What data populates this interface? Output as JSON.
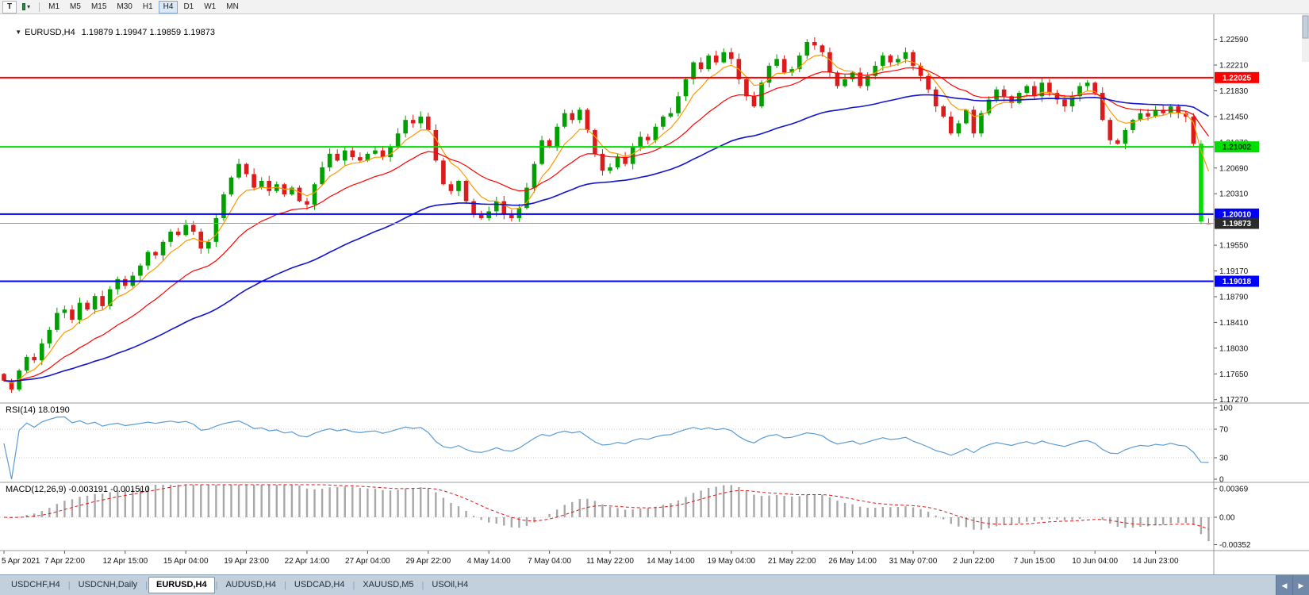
{
  "toolbar": {
    "tool_button": "T",
    "dropdown_icon": "▾",
    "timeframes": [
      "M1",
      "M5",
      "M15",
      "M30",
      "H1",
      "H4",
      "D1",
      "W1",
      "MN"
    ],
    "active_timeframe": "H4"
  },
  "chart_header": {
    "collapse_icon": "▼",
    "symbol": "EURUSD,H4",
    "ohlc": "1.19879 1.19947 1.19859 1.19873"
  },
  "rsi_panel": {
    "label": "RSI(14) 18.0190",
    "period": 14,
    "levels": [
      100,
      70,
      30,
      0
    ],
    "line_color": "#5b9bd5"
  },
  "macd_panel": {
    "label": "MACD(12,26,9) -0.003191 -0.001510",
    "fast": 12,
    "slow": 26,
    "signal": 9,
    "axis_labels": [
      "0.00369",
      "0.00",
      "-0.00352"
    ],
    "histogram_color": "#a8a8a8",
    "signal_color": "#e01616"
  },
  "tabs": {
    "items": [
      "USDCHF,H4",
      "USDCNH,Daily",
      "EURUSD,H4",
      "AUDUSD,H4",
      "USDCAD,H4",
      "XAUUSD,M5",
      "USOil,H4"
    ],
    "active": "EURUSD,H4",
    "scroll_left_icon": "◀",
    "scroll_right_icon": "▶"
  },
  "chart_data": {
    "type": "candlestick",
    "symbol": "EURUSD",
    "timeframe": "H4",
    "price_range": {
      "top": 1.2296,
      "bottom": 1.1722
    },
    "first_open": 1.1765,
    "closes": [
      1.1755,
      1.1742,
      1.177,
      1.179,
      1.1785,
      1.181,
      1.183,
      1.1855,
      1.186,
      1.1845,
      1.187,
      1.186,
      1.188,
      1.1865,
      1.189,
      1.1905,
      1.1895,
      1.191,
      1.1925,
      1.1945,
      1.194,
      1.196,
      1.1975,
      1.197,
      1.1985,
      1.1975,
      1.195,
      1.196,
      1.1995,
      1.203,
      1.2055,
      1.2075,
      1.206,
      1.204,
      1.205,
      1.2035,
      1.2045,
      1.203,
      1.204,
      1.202,
      1.2015,
      1.2045,
      1.207,
      1.209,
      1.208,
      1.2095,
      1.2085,
      1.208,
      1.209,
      1.2095,
      1.2085,
      1.21,
      1.212,
      1.214,
      1.2135,
      1.2145,
      1.2125,
      1.208,
      1.2045,
      1.2035,
      1.205,
      1.202,
      1.2,
      1.1995,
      1.2005,
      1.202,
      1.2,
      1.1995,
      1.201,
      1.204,
      1.2075,
      1.211,
      1.21,
      1.213,
      1.215,
      1.214,
      1.2155,
      1.2125,
      1.209,
      1.2065,
      1.207,
      1.2085,
      1.2075,
      1.21,
      1.2115,
      1.211,
      1.213,
      1.2145,
      1.215,
      1.2175,
      1.22,
      1.2225,
      1.2215,
      1.2235,
      1.2225,
      1.224,
      1.223,
      1.22,
      1.2175,
      1.216,
      1.2195,
      1.222,
      1.223,
      1.221,
      1.2215,
      1.2235,
      1.2255,
      1.225,
      1.224,
      1.221,
      1.219,
      1.22,
      1.221,
      1.219,
      1.2205,
      1.222,
      1.2235,
      1.2225,
      1.223,
      1.224,
      1.222,
      1.2205,
      1.2185,
      1.216,
      1.2145,
      1.212,
      1.2135,
      1.2155,
      1.212,
      1.215,
      1.217,
      1.2185,
      1.2175,
      1.2165,
      1.218,
      1.219,
      1.2175,
      1.2195,
      1.218,
      1.217,
      1.216,
      1.2175,
      1.219,
      1.2195,
      1.218,
      1.214,
      1.211,
      1.2105,
      1.2125,
      1.214,
      1.215,
      1.2145,
      1.2155,
      1.215,
      1.216,
      1.215,
      1.2145,
      1.2105,
      1.199,
      1.19873
    ],
    "candle_overrides": {
      "157": [
        1.2145,
        1.215,
        1.21,
        1.2105
      ],
      "158": [
        1.2105,
        1.211,
        1.1986,
        1.199,
        "bright"
      ],
      "159": [
        1.19879,
        1.19947,
        1.19859,
        1.19873
      ]
    },
    "up_color": "#00a000",
    "down_color": "#dc1c1c",
    "bright_up_color": "#00e000",
    "moving_averages": [
      {
        "name": "fast-ma",
        "period": 6,
        "color": "#ff9900",
        "width": 1.2
      },
      {
        "name": "medium-ma",
        "period": 18,
        "color": "#ff0000",
        "width": 1.2
      },
      {
        "name": "slow-ma",
        "period": 50,
        "color": "#1414cc",
        "width": 1.6
      }
    ],
    "hlines": [
      {
        "price": 1.22025,
        "label": "1.22025",
        "color": "#ff0000",
        "label_text": "#ffffff"
      },
      {
        "price": 1.21002,
        "label": "1.21002",
        "color": "#00dd00",
        "label_text": "#003300"
      },
      {
        "price": 1.2001,
        "label": "1.20010",
        "color": "#0000ff",
        "label_text": "#ffffff"
      },
      {
        "price": 1.19018,
        "label": "1.19018",
        "color": "#0000ff",
        "label_text": "#ffffff"
      }
    ],
    "current_price": {
      "value": 1.19873,
      "label": "1.19873",
      "line_color": "#9a9a9a",
      "label_bg": "#2b2b2b",
      "label_text": "#ffffff"
    },
    "price_axis_ticks": [
      "1.22590",
      "1.22210",
      "1.21830",
      "1.21450",
      "1.21070",
      "1.20690",
      "1.20310",
      "1.19930",
      "1.19550",
      "1.19170",
      "1.18790",
      "1.18410",
      "1.18030",
      "1.17650",
      "1.17270"
    ],
    "time_axis": {
      "label_every": 8,
      "labels": [
        "5 Apr 2021",
        "7 Apr 22:00",
        "12 Apr 15:00",
        "15 Apr 04:00",
        "19 Apr 23:00",
        "22 Apr 14:00",
        "27 Apr 04:00",
        "29 Apr 22:00",
        "4 May 14:00",
        "7 May 04:00",
        "11 May 22:00",
        "14 May 14:00",
        "19 May 04:00",
        "21 May 22:00",
        "26 May 14:00",
        "31 May 07:00",
        "2 Jun 22:00",
        "7 Jun 15:00",
        "10 Jun 04:00",
        "14 Jun 23:00"
      ]
    }
  }
}
